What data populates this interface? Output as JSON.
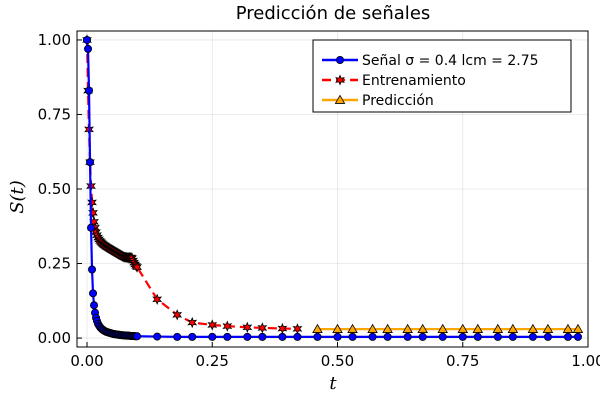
{
  "chart_data": {
    "type": "line",
    "title": "Predicción de señales",
    "xlabel": "t",
    "ylabel": "S(t)",
    "xlim": [
      -0.02,
      1.0
    ],
    "ylim": [
      -0.03,
      1.03
    ],
    "xticks": [
      0.0,
      0.25,
      0.5,
      0.75,
      1.0
    ],
    "xtick_labels": [
      "0.00",
      "0.25",
      "0.50",
      "0.75",
      "1.00"
    ],
    "yticks": [
      0.0,
      0.25,
      0.5,
      0.75,
      1.0
    ],
    "ytick_labels": [
      "0.00",
      "0.25",
      "0.50",
      "0.75",
      "1.00"
    ],
    "grid": true,
    "legend_position": "top-right",
    "series": [
      {
        "name": "Señal σ = 0.4 lcm = 2.75",
        "color": "#0000ff",
        "line_style": "solid",
        "marker": "circle",
        "x": [
          0.0,
          0.002,
          0.004,
          0.006,
          0.008,
          0.01,
          0.012,
          0.014,
          0.016,
          0.018,
          0.02,
          0.022,
          0.024,
          0.026,
          0.028,
          0.03,
          0.032,
          0.034,
          0.036,
          0.038,
          0.04,
          0.042,
          0.044,
          0.046,
          0.048,
          0.05,
          0.052,
          0.054,
          0.056,
          0.058,
          0.06,
          0.062,
          0.064,
          0.066,
          0.068,
          0.07,
          0.072,
          0.074,
          0.076,
          0.078,
          0.08,
          0.082,
          0.084,
          0.086,
          0.088,
          0.09,
          0.092,
          0.094,
          0.096,
          0.098,
          0.1,
          0.14,
          0.18,
          0.21,
          0.25,
          0.28,
          0.32,
          0.35,
          0.39,
          0.42,
          0.46,
          0.5,
          0.53,
          0.57,
          0.6,
          0.64,
          0.67,
          0.71,
          0.75,
          0.78,
          0.82,
          0.85,
          0.89,
          0.92,
          0.96,
          0.98
        ],
        "y": [
          1.0,
          0.97,
          0.83,
          0.59,
          0.37,
          0.23,
          0.15,
          0.11,
          0.085,
          0.068,
          0.057,
          0.048,
          0.042,
          0.037,
          0.033,
          0.03,
          0.027,
          0.025,
          0.023,
          0.021,
          0.02,
          0.019,
          0.018,
          0.017,
          0.016,
          0.015,
          0.014,
          0.013,
          0.013,
          0.012,
          0.012,
          0.011,
          0.011,
          0.01,
          0.01,
          0.01,
          0.009,
          0.009,
          0.009,
          0.008,
          0.008,
          0.008,
          0.008,
          0.007,
          0.007,
          0.007,
          0.007,
          0.007,
          0.006,
          0.006,
          0.006,
          0.005,
          0.004,
          0.004,
          0.004,
          0.004,
          0.004,
          0.004,
          0.004,
          0.004,
          0.004,
          0.004,
          0.004,
          0.004,
          0.004,
          0.004,
          0.004,
          0.004,
          0.004,
          0.004,
          0.004,
          0.004,
          0.004,
          0.004,
          0.004,
          0.004
        ]
      },
      {
        "name": "Entrenamiento",
        "color": "#ff0000",
        "line_style": "dashed",
        "marker": "star",
        "x": [
          0.0,
          0.002,
          0.004,
          0.006,
          0.008,
          0.01,
          0.012,
          0.014,
          0.016,
          0.018,
          0.02,
          0.022,
          0.024,
          0.026,
          0.028,
          0.03,
          0.032,
          0.034,
          0.036,
          0.038,
          0.04,
          0.042,
          0.044,
          0.046,
          0.048,
          0.05,
          0.052,
          0.054,
          0.056,
          0.058,
          0.06,
          0.062,
          0.064,
          0.066,
          0.068,
          0.07,
          0.072,
          0.074,
          0.076,
          0.078,
          0.08,
          0.082,
          0.084,
          0.086,
          0.088,
          0.09,
          0.092,
          0.094,
          0.096,
          0.098,
          0.1,
          0.14,
          0.18,
          0.21,
          0.25,
          0.28,
          0.32,
          0.35,
          0.39,
          0.42
        ],
        "y": [
          1.0,
          0.83,
          0.7,
          0.59,
          0.51,
          0.455,
          0.42,
          0.39,
          0.37,
          0.355,
          0.345,
          0.337,
          0.331,
          0.326,
          0.322,
          0.318,
          0.315,
          0.312,
          0.31,
          0.307,
          0.305,
          0.303,
          0.301,
          0.299,
          0.297,
          0.295,
          0.293,
          0.291,
          0.289,
          0.287,
          0.285,
          0.283,
          0.281,
          0.279,
          0.277,
          0.275,
          0.273,
          0.272,
          0.271,
          0.271,
          0.27,
          0.27,
          0.27,
          0.27,
          0.27,
          0.268,
          0.26,
          0.253,
          0.247,
          0.242,
          0.238,
          0.13,
          0.078,
          0.052,
          0.044,
          0.04,
          0.036,
          0.034,
          0.032,
          0.031
        ]
      },
      {
        "name": "Predicción",
        "color": "#ffa500",
        "line_style": "solid",
        "marker": "triangle",
        "x": [
          0.46,
          0.5,
          0.53,
          0.57,
          0.6,
          0.64,
          0.67,
          0.71,
          0.75,
          0.78,
          0.82,
          0.85,
          0.89,
          0.92,
          0.96,
          0.98
        ],
        "y": [
          0.03,
          0.03,
          0.03,
          0.03,
          0.03,
          0.03,
          0.03,
          0.03,
          0.03,
          0.03,
          0.03,
          0.03,
          0.03,
          0.03,
          0.03,
          0.03
        ]
      }
    ]
  }
}
